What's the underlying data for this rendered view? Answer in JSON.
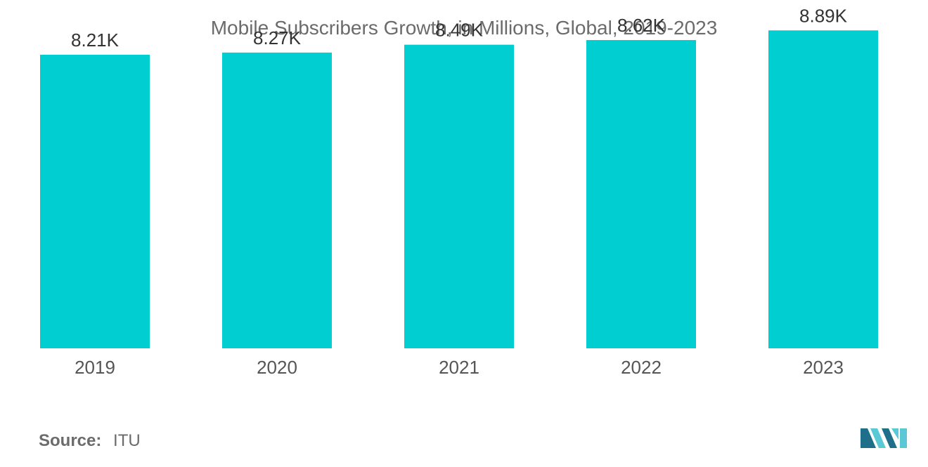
{
  "title": "Mobile Subscribers Growth, in Millions, Global, 2019-2023",
  "source": {
    "label": "Source:",
    "value": "ITU"
  },
  "colors": {
    "bar": "#00CED1",
    "text": "#555555",
    "logo_dark": "#1f6f8b",
    "logo_light": "#5bc8d6"
  },
  "logo": {
    "icon": "mordor-intelligence-logo-icon"
  },
  "chart_data": {
    "type": "bar",
    "categories": [
      "2019",
      "2020",
      "2021",
      "2022",
      "2023"
    ],
    "values": [
      8210,
      8270,
      8490,
      8620,
      8890
    ],
    "data_labels": [
      "8.21K",
      "8.27K",
      "8.49K",
      "8.62K",
      "8.89K"
    ],
    "title": "Mobile Subscribers Growth, in Millions, Global, 2019-2023",
    "xlabel": "",
    "ylabel": "",
    "ylim": [
      0,
      9740
    ],
    "grid": false,
    "legend": "none"
  }
}
